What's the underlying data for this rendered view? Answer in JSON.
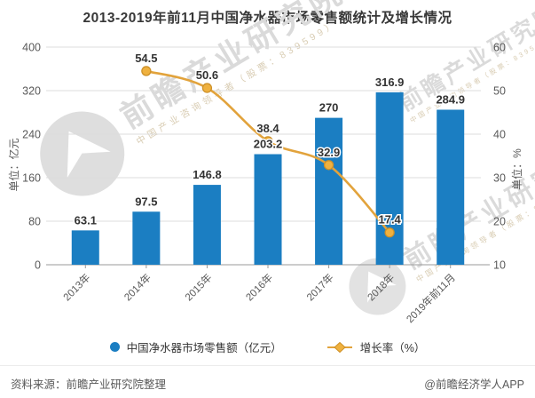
{
  "title": "2013-2019年前11月中国净水器市场零售额统计及增长情况",
  "chart_data": {
    "type": "bar",
    "categories": [
      "2013年",
      "2014年",
      "2015年",
      "2016年",
      "2017年",
      "2018年",
      "2019年前11月"
    ],
    "series": [
      {
        "name": "中国净水器市场零售额（亿元）",
        "type": "bar",
        "axis": "left",
        "values": [
          63.1,
          97.5,
          146.8,
          203.2,
          270,
          316.9,
          284.9
        ]
      },
      {
        "name": "增长率（%）",
        "type": "line",
        "axis": "right",
        "values": [
          null,
          54.5,
          50.6,
          38.4,
          32.9,
          17.4,
          null
        ]
      }
    ],
    "left_axis": {
      "name": "单位：亿元",
      "min": 0,
      "max": 400,
      "ticks": [
        0,
        80,
        160,
        240,
        320,
        400
      ]
    },
    "right_axis": {
      "name": "单位：%",
      "min": 10,
      "max": 60,
      "ticks": [
        10,
        20,
        30,
        40,
        50,
        60
      ]
    },
    "grid": true,
    "legend_position": "bottom",
    "x_label_rotation": 45
  },
  "legend": {
    "bar_label": "中国净水器市场零售额（亿元）",
    "line_label": "增长率（%）"
  },
  "footer": {
    "source": "资料来源：前瞻产业研究院整理",
    "credit": "@前瞻经济学人APP"
  },
  "watermark": {
    "text": "前瞻产业研究院",
    "subtext": "中国产业咨询领导者（股票：839599）"
  },
  "colors": {
    "bar": "#1B7EC2",
    "line": "#E2A33C",
    "marker_fill": "#EFB13F",
    "marker_stroke": "#CE9128",
    "grid": "#DCDCDC",
    "axis": "#9A9A9A",
    "label": "#333333",
    "tick": "#595959"
  }
}
